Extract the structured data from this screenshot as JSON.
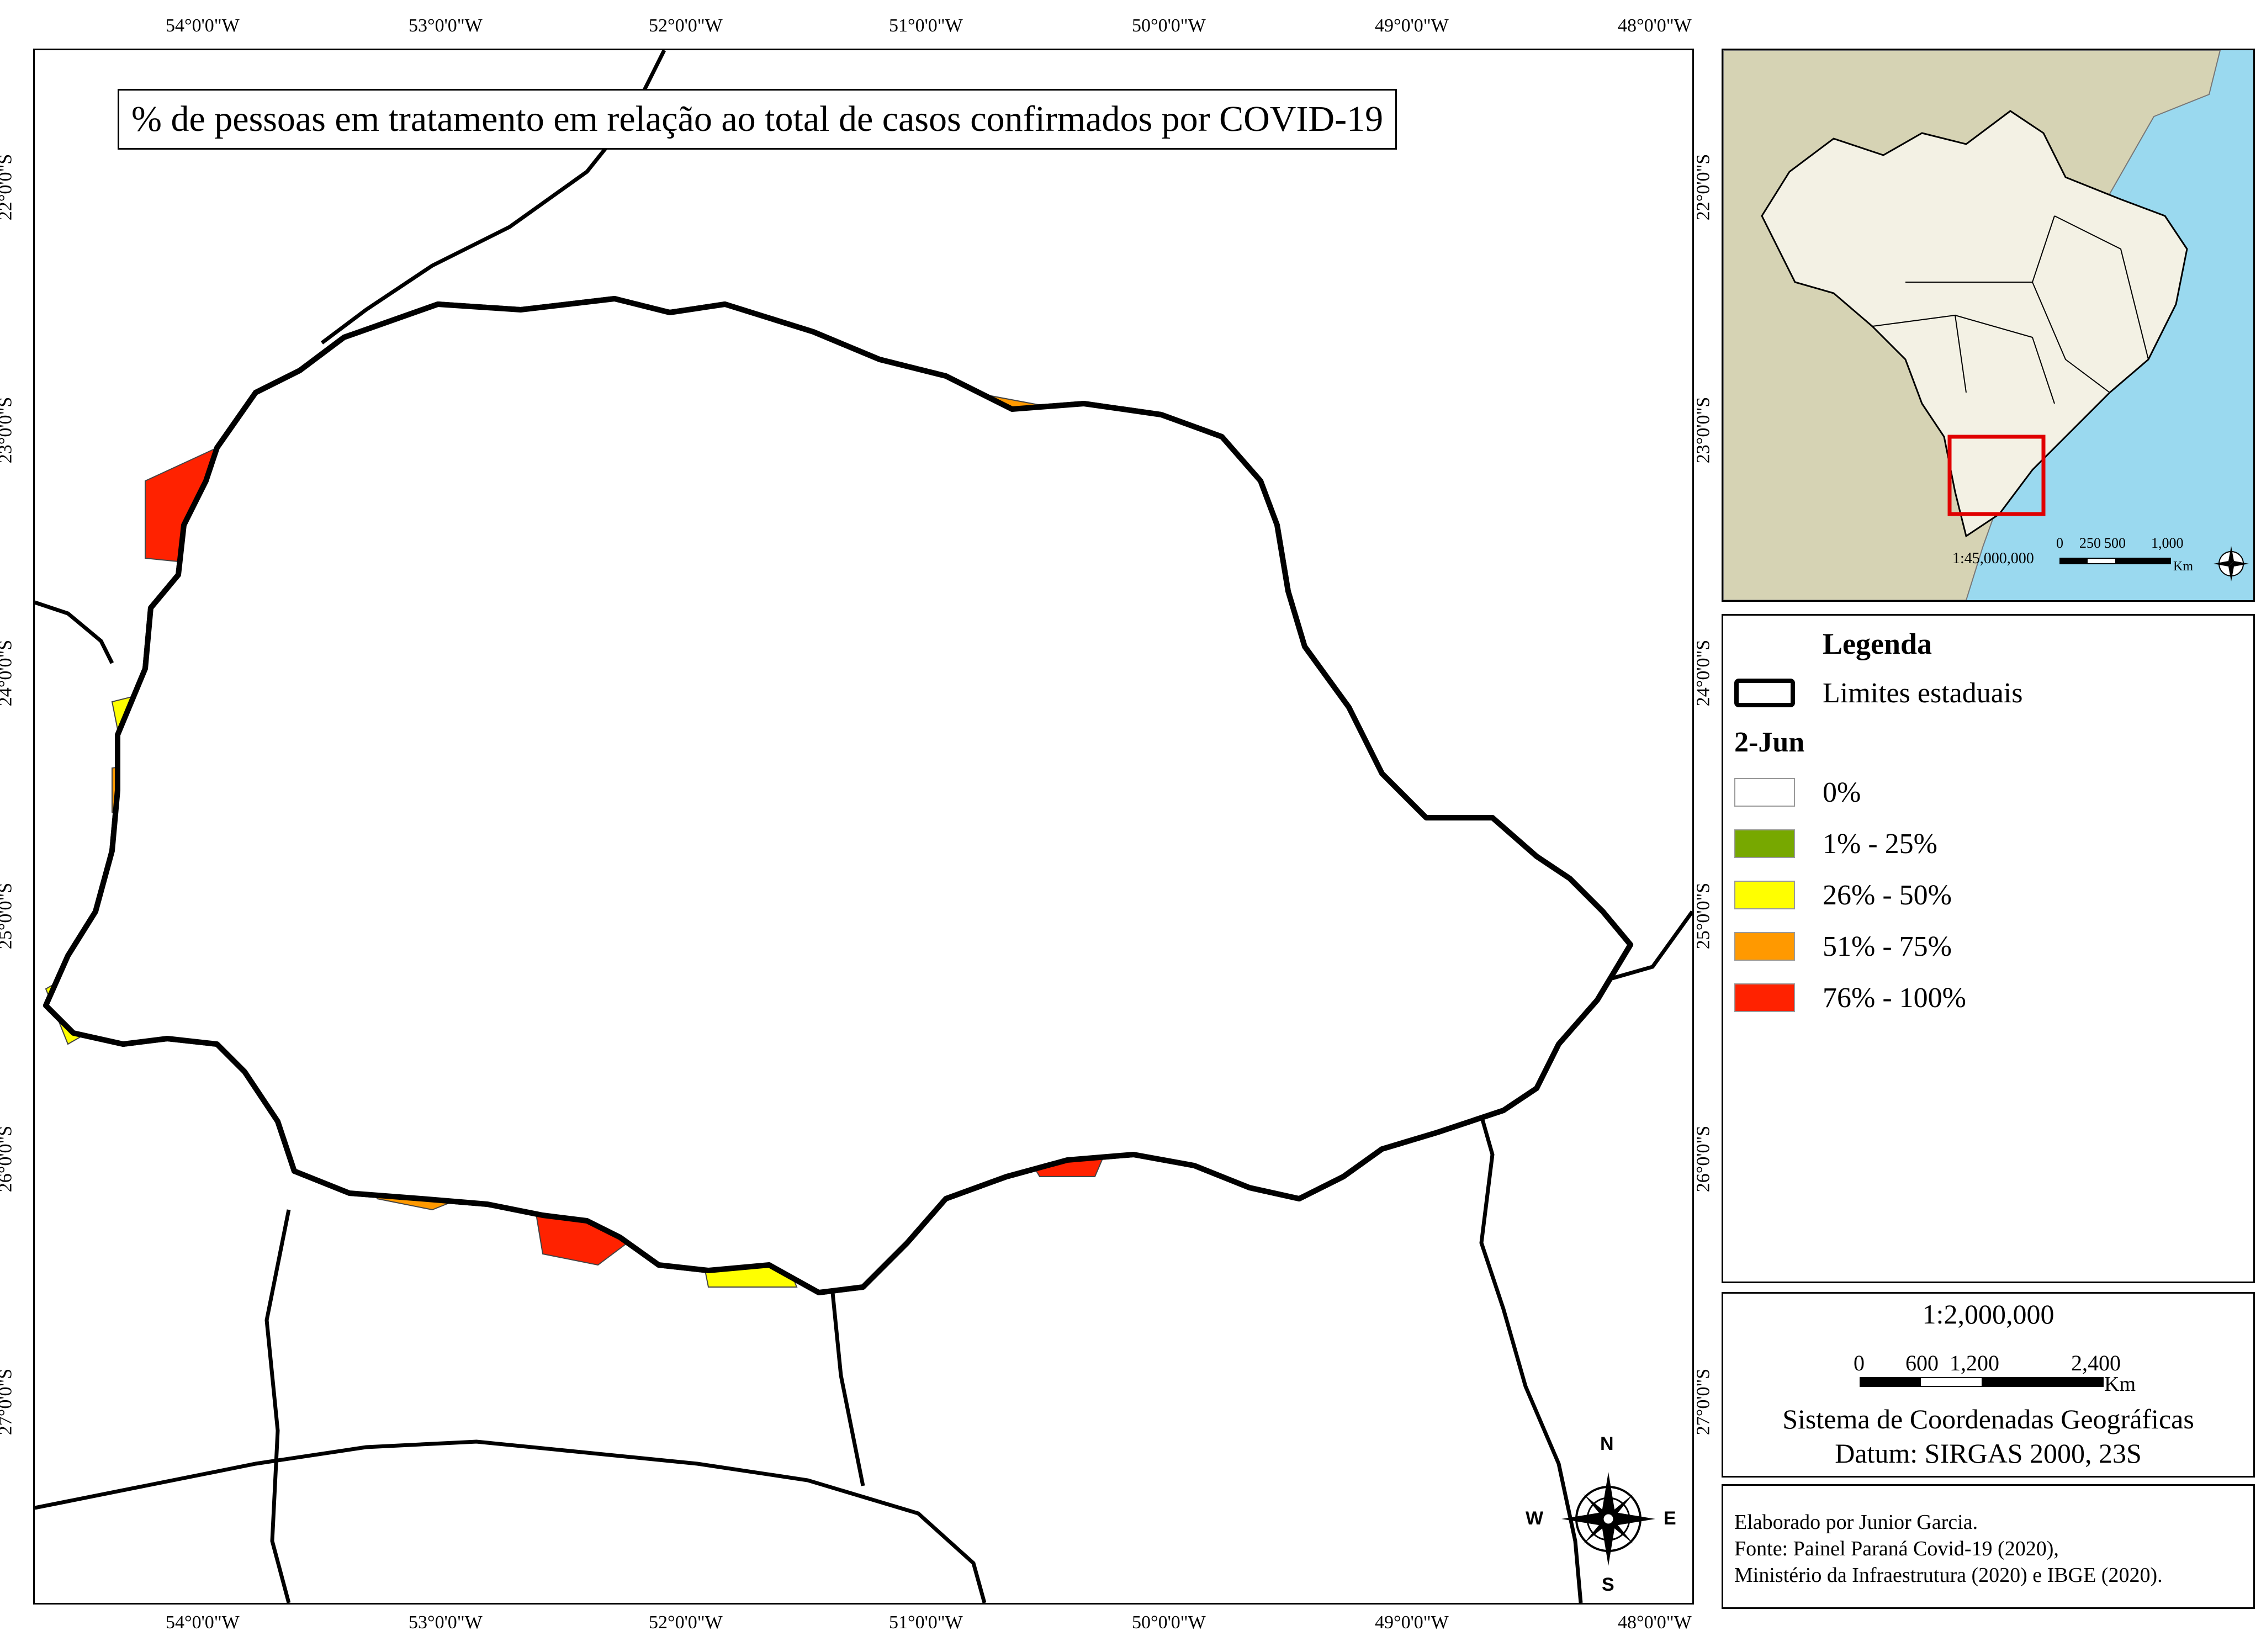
{
  "map": {
    "title": "% de pessoas em tratamento em relação ao total de casos confirmados por COVID-19",
    "lon_ticks": [
      "54°0'0\"W",
      "53°0'0\"W",
      "52°0'0\"W",
      "51°0'0\"W",
      "50°0'0\"W",
      "49°0'0\"W",
      "48°0'0\"W"
    ],
    "lat_ticks": [
      "22°0'0\"S",
      "23°0'0\"S",
      "24°0'0\"S",
      "25°0'0\"S",
      "26°0'0\"S",
      "27°0'0\"S"
    ],
    "compass": {
      "n": "N",
      "s": "S",
      "e": "E",
      "w": "W"
    }
  },
  "inset": {
    "scale_ratio": "1:45,000,000",
    "scale_labels": [
      "0",
      "250",
      "500",
      "1,000"
    ],
    "scale_unit": "Km",
    "colors": {
      "ocean": "#9ad9ef",
      "land_other": "#d6d3b4",
      "brazil": "#f3f1e4",
      "highlight": "#e00000"
    }
  },
  "legend": {
    "title": "Legenda",
    "state_limits_label": "Limites estaduais",
    "date_label": "2-Jun",
    "classes": [
      {
        "label": "0%",
        "color": "#ffffff"
      },
      {
        "label": "1% - 25%",
        "color": "#77a800"
      },
      {
        "label": "26% - 50%",
        "color": "#ffff00"
      },
      {
        "label": "51% - 75%",
        "color": "#ff9900"
      },
      {
        "label": "76% - 100%",
        "color": "#ff2200"
      }
    ]
  },
  "scale": {
    "ratio": "1:2,000,000",
    "labels": [
      "0",
      "600",
      "1,200",
      "2,400"
    ],
    "unit": "Km",
    "crs_line1": "Sistema de Coordenadas Geográficas",
    "crs_line2": "Datum: SIRGAS 2000, 23S"
  },
  "credits": {
    "line1": "Elaborado por Junior Garcia.",
    "line2": "Fonte: Painel Paraná Covid-19 (2020),",
    "line3": "Ministério da Infraestrutura (2020) e IBGE (2020)."
  }
}
